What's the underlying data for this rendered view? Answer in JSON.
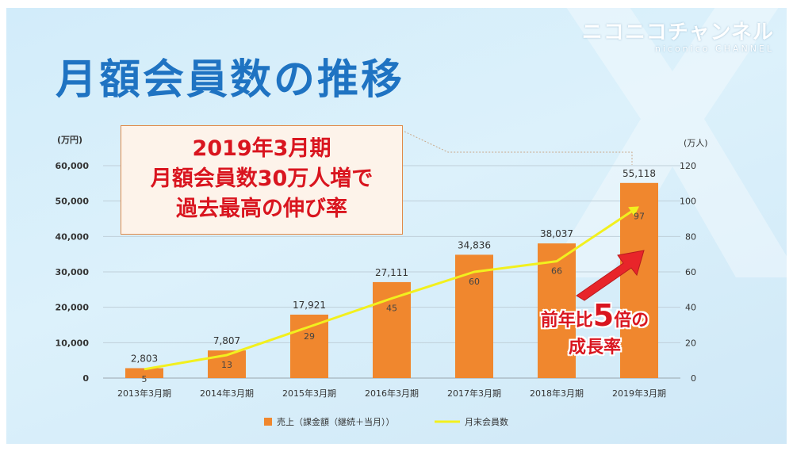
{
  "slide": {
    "title": "月額会員数の推移",
    "logo_main": "ニコニコチャンネル",
    "logo_sub": "niconico CHANNEL",
    "callout": [
      "2019年3月期",
      "月額会員数30万人増で",
      "過去最高の伸び率"
    ],
    "growth": {
      "prefix": "前年比",
      "number": "5",
      "suffix": "倍の",
      "line2": "成長率"
    }
  },
  "colors": {
    "bar": "#f0872e",
    "line": "#f2f01e",
    "arrow": "#e8252a",
    "title": "#1f73c2",
    "callout_text": "#d9151f"
  },
  "chart_data": {
    "type": "bar",
    "categories": [
      "2013年3月期",
      "2014年3月期",
      "2015年3月期",
      "2016年3月期",
      "2017年3月期",
      "2018年3月期",
      "2019年3月期"
    ],
    "left_unit": "(万円)",
    "right_unit": "(万人)",
    "left_ylim": [
      0,
      60000
    ],
    "left_ticks": [
      "0",
      "10,000",
      "20,000",
      "30,000",
      "40,000",
      "50,000",
      "60,000"
    ],
    "right_ylim": [
      0,
      120
    ],
    "right_ticks": [
      "0",
      "20",
      "40",
      "60",
      "80",
      "100",
      "120"
    ],
    "series": [
      {
        "name": "売上（課金額（継続＋当月））",
        "type": "bar",
        "axis": "left",
        "values": [
          2803,
          7807,
          17921,
          27111,
          34836,
          38037,
          55118
        ],
        "labels": [
          "2,803",
          "7,807",
          "17,921",
          "27,111",
          "34,836",
          "38,037",
          "55,118"
        ]
      },
      {
        "name": "月末会員数",
        "type": "line",
        "axis": "right",
        "values": [
          5,
          13,
          29,
          45,
          60,
          66,
          97
        ],
        "labels": [
          "5",
          "13",
          "29",
          "45",
          "60",
          "66",
          "97"
        ]
      }
    ],
    "grid": true,
    "legend": "bottom"
  }
}
